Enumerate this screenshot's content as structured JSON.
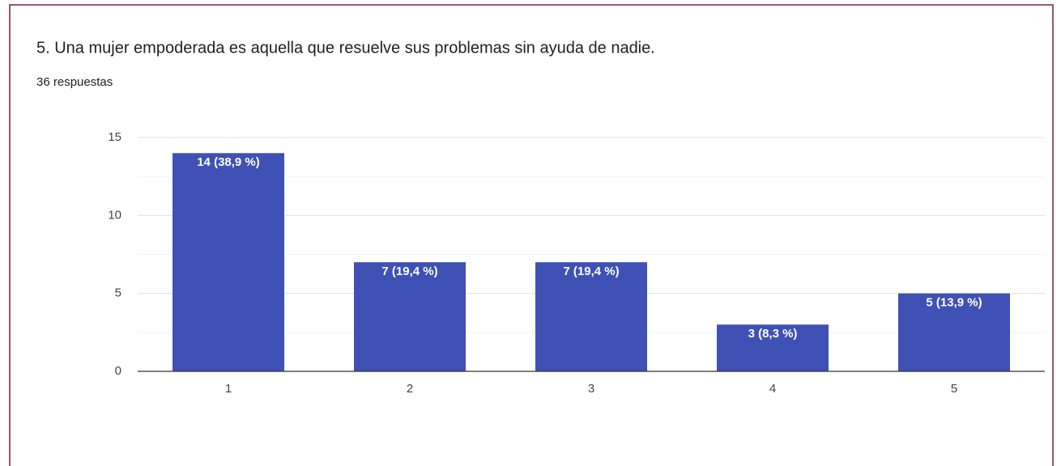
{
  "chart_data": {
    "type": "bar",
    "title": "5. Una mujer empoderada es aquella que resuelve sus problemas sin ayuda de nadie.",
    "subtitle": "36 respuestas",
    "categories": [
      "1",
      "2",
      "3",
      "4",
      "5"
    ],
    "values": [
      14,
      7,
      7,
      3,
      5
    ],
    "value_labels": [
      "14 (38,9 %)",
      "7 (19,4 %)",
      "7 (19,4 %)",
      "3 (8,3 %)",
      "5 (13,9 %)"
    ],
    "color": "#3f51b5",
    "ylim": [
      0,
      15
    ],
    "yticks": [
      0,
      5,
      10,
      15
    ],
    "minor_yticks": [
      2.5,
      7.5,
      12.5
    ],
    "grid": true
  }
}
